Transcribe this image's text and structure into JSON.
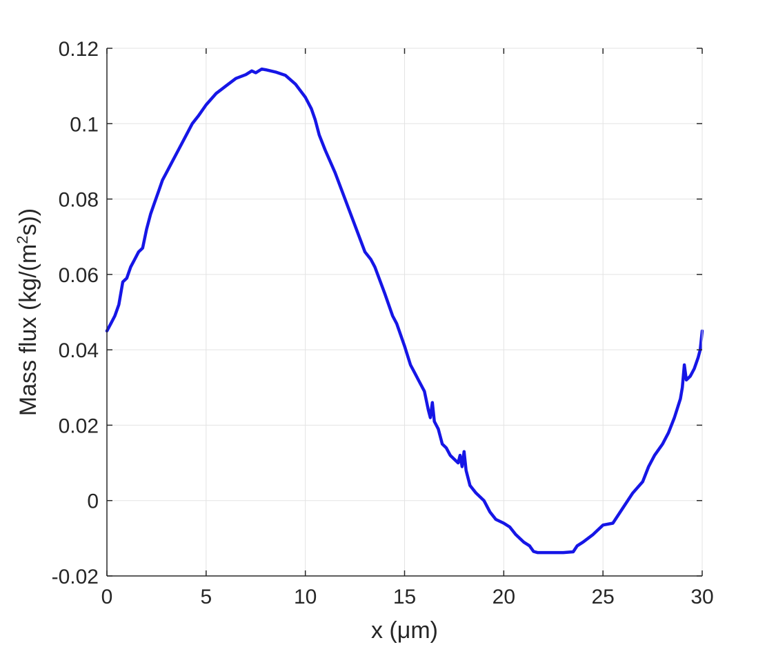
{
  "chart_data": {
    "type": "line",
    "title": "",
    "xlabel": "x (μm)",
    "ylabel_main": "Mass flux (kg/(m",
    "ylabel_sup": "2",
    "ylabel_tail": "s))",
    "xlim": [
      0,
      30
    ],
    "ylim": [
      -0.02,
      0.12
    ],
    "grid": true,
    "x_ticks": [
      0,
      5,
      10,
      15,
      20,
      25,
      30
    ],
    "x_tick_labels": [
      "0",
      "5",
      "10",
      "15",
      "20",
      "25",
      "30"
    ],
    "y_ticks": [
      -0.02,
      0,
      0.02,
      0.04,
      0.06,
      0.08,
      0.1,
      0.12
    ],
    "y_tick_labels": [
      "-0.02",
      "0",
      "0.02",
      "0.04",
      "0.06",
      "0.08",
      "0.1",
      "0.12"
    ],
    "series": [
      {
        "color": "#1616e6",
        "x": [
          0,
          0.2,
          0.4,
          0.6,
          0.8,
          1.0,
          1.2,
          1.4,
          1.6,
          1.8,
          2.0,
          2.2,
          2.4,
          2.6,
          2.8,
          3.0,
          3.3,
          3.6,
          4.0,
          4.3,
          4.6,
          5.0,
          5.5,
          6.0,
          6.5,
          7.0,
          7.3,
          7.5,
          7.8,
          8.0,
          8.5,
          9.0,
          9.5,
          10.0,
          10.3,
          10.5,
          10.7,
          11.0,
          11.5,
          12.0,
          12.5,
          13.0,
          13.3,
          13.5,
          14.0,
          14.4,
          14.6,
          15.0,
          15.3,
          15.5,
          15.7,
          16.0,
          16.2,
          16.3,
          16.4,
          16.5,
          16.7,
          16.9,
          17.1,
          17.3,
          17.5,
          17.7,
          17.8,
          17.9,
          18.0,
          18.1,
          18.3,
          18.6,
          19.0,
          19.3,
          19.6,
          20.0,
          20.3,
          20.6,
          21.0,
          21.3,
          21.5,
          21.7,
          22.0,
          22.5,
          23.0,
          23.5,
          23.7,
          24.0,
          24.5,
          25.0,
          25.5,
          26.0,
          26.5,
          27.0,
          27.3,
          27.6,
          28.0,
          28.3,
          28.6,
          28.9,
          29.0,
          29.1,
          29.2,
          29.4,
          29.6,
          29.8,
          29.9,
          30.0
        ],
        "y": [
          0.045,
          0.047,
          0.049,
          0.052,
          0.058,
          0.059,
          0.062,
          0.064,
          0.066,
          0.067,
          0.072,
          0.076,
          0.079,
          0.082,
          0.085,
          0.087,
          0.09,
          0.093,
          0.097,
          0.1,
          0.102,
          0.105,
          0.108,
          0.11,
          0.112,
          0.113,
          0.114,
          0.1135,
          0.1145,
          0.1143,
          0.1137,
          0.1128,
          0.1105,
          0.107,
          0.104,
          0.101,
          0.097,
          0.093,
          0.087,
          0.08,
          0.073,
          0.066,
          0.064,
          0.062,
          0.055,
          0.049,
          0.047,
          0.041,
          0.036,
          0.034,
          0.032,
          0.029,
          0.024,
          0.022,
          0.026,
          0.021,
          0.019,
          0.015,
          0.014,
          0.012,
          0.011,
          0.01,
          0.012,
          0.009,
          0.013,
          0.008,
          0.004,
          0.002,
          0.0,
          -0.003,
          -0.005,
          -0.006,
          -0.007,
          -0.009,
          -0.011,
          -0.012,
          -0.0135,
          -0.0138,
          -0.0138,
          -0.0138,
          -0.0138,
          -0.0136,
          -0.012,
          -0.011,
          -0.009,
          -0.0065,
          -0.006,
          -0.002,
          0.002,
          0.005,
          0.009,
          0.012,
          0.015,
          0.018,
          0.022,
          0.027,
          0.03,
          0.036,
          0.032,
          0.033,
          0.035,
          0.038,
          0.04,
          0.045
        ]
      }
    ]
  }
}
